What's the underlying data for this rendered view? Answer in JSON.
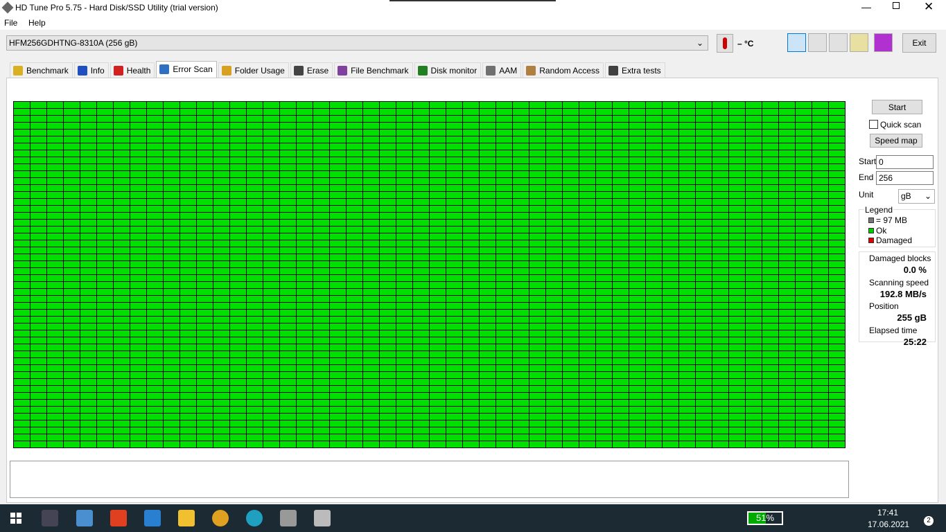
{
  "window": {
    "title": "HD Tune Pro 5.75 - Hard Disk/SSD Utility (trial version)"
  },
  "menu": [
    "File",
    "Help"
  ],
  "toolbar": {
    "drive": "HFM256GDHTNG-8310A (256 gB)",
    "temperature": "– °C",
    "exit": "Exit"
  },
  "tabs": [
    "Benchmark",
    "Info",
    "Health",
    "Error Scan",
    "Folder Usage",
    "Erase",
    "File Benchmark",
    "Disk monitor",
    "AAM",
    "Random Access",
    "Extra tests"
  ],
  "side": {
    "start_button": "Start",
    "quick_scan": "Quick scan",
    "speed_map": "Speed map",
    "start_label": "Start",
    "start_value": "0",
    "end_label": "End",
    "end_value": "256",
    "unit_label": "Unit",
    "unit_value": "gB",
    "legend": {
      "title": "Legend",
      "items": [
        "= 97 MB",
        "Ok",
        "Damaged"
      ]
    },
    "stats": [
      {
        "label": "Damaged blocks",
        "value": "0.0 %"
      },
      {
        "label": "Scanning speed",
        "value": "192.8 MB/s"
      },
      {
        "label": "Position",
        "value": "255 gB"
      },
      {
        "label": "Elapsed time",
        "value": "25:22"
      }
    ]
  },
  "taskbar": {
    "battery": "51%",
    "time": "17:41",
    "date": "17.06.2021",
    "notifications": "2"
  }
}
